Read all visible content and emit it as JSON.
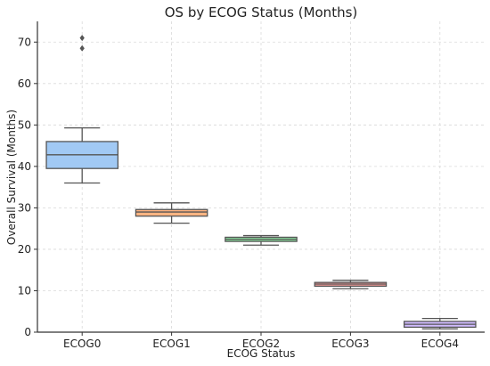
{
  "chart_data": {
    "type": "box",
    "title": "OS by ECOG Status (Months)",
    "xlabel": "ECOG Status",
    "ylabel": "Overall Survival (Months)",
    "ylim": [
      0,
      75
    ],
    "yticks": [
      0,
      10,
      20,
      30,
      40,
      50,
      60,
      70
    ],
    "grid": true,
    "categories": [
      "ECOG0",
      "ECOG1",
      "ECOG2",
      "ECOG3",
      "ECOG4"
    ],
    "boxes": [
      {
        "category": "ECOG0",
        "whisker_low": 36.0,
        "q1": 39.5,
        "median": 42.8,
        "q3": 46.0,
        "whisker_high": 49.3,
        "outliers": [
          68.5,
          71.0
        ],
        "color": "#a1c9f4"
      },
      {
        "category": "ECOG1",
        "whisker_low": 26.3,
        "q1": 28.0,
        "median": 29.0,
        "q3": 29.6,
        "whisker_high": 31.2,
        "outliers": [],
        "color": "#ffb482"
      },
      {
        "category": "ECOG2",
        "whisker_low": 21.0,
        "q1": 21.9,
        "median": 22.4,
        "q3": 22.9,
        "whisker_high": 23.3,
        "outliers": [],
        "color": "#8de5a1"
      },
      {
        "category": "ECOG3",
        "whisker_low": 10.5,
        "q1": 11.1,
        "median": 11.6,
        "q3": 12.0,
        "whisker_high": 12.5,
        "outliers": [],
        "color": "#ff9f9b"
      },
      {
        "category": "ECOG4",
        "whisker_low": 0.8,
        "q1": 1.2,
        "median": 1.9,
        "q3": 2.6,
        "whisker_high": 3.3,
        "outliers": [],
        "color": "#d0bbff"
      }
    ]
  }
}
